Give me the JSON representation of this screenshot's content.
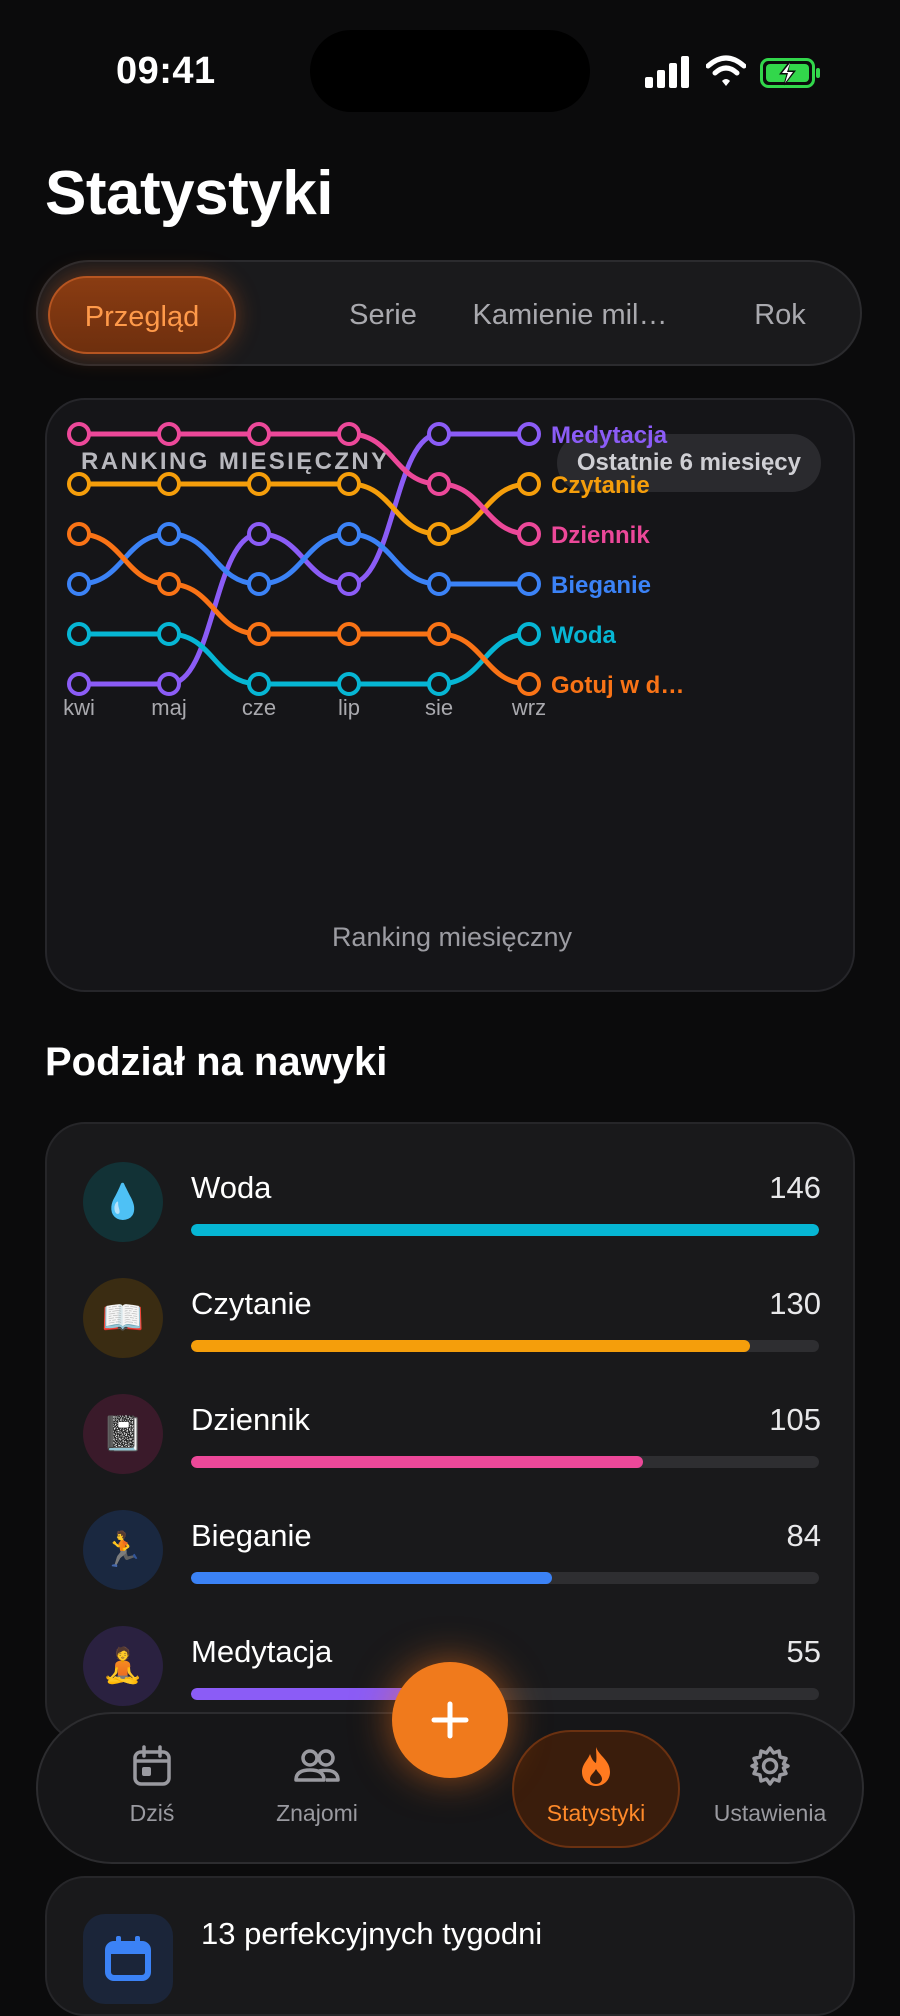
{
  "status_bar": {
    "time": "09:41"
  },
  "page_title": "Statystyki",
  "tabs": [
    {
      "label": "Przegląd",
      "active": true
    },
    {
      "label": "Serie",
      "active": false
    },
    {
      "label": "Kamienie mil…",
      "active": false
    },
    {
      "label": "Rok",
      "active": false
    }
  ],
  "ranking": {
    "title": "RANKING MIESIĘCZNY",
    "range_pill": "Ostatnie 6 miesięcy",
    "caption": "Ranking miesięczny"
  },
  "chart_data": {
    "type": "line",
    "categories": [
      "kwi",
      "maj",
      "cze",
      "lip",
      "sie",
      "wrz"
    ],
    "y_meaning": "rank (1 = top)",
    "ylim": [
      1,
      6
    ],
    "y_inverted": true,
    "series": [
      {
        "name": "Medytacja",
        "color": "#8b5cf6",
        "values": [
          6,
          6,
          3,
          4,
          1,
          1
        ]
      },
      {
        "name": "Czytanie",
        "color": "#f59e0b",
        "values": [
          2,
          2,
          2,
          2,
          3,
          2
        ]
      },
      {
        "name": "Dziennik",
        "color": "#ec4899",
        "values": [
          1,
          1,
          1,
          1,
          2,
          3
        ]
      },
      {
        "name": "Bieganie",
        "color": "#3b82f6",
        "values": [
          4,
          3,
          4,
          3,
          4,
          4
        ]
      },
      {
        "name": "Woda",
        "color": "#06b6d4",
        "values": [
          5,
          5,
          6,
          6,
          6,
          5
        ]
      },
      {
        "name": "Gotuj w d…",
        "color": "#f97316",
        "values": [
          3,
          4,
          5,
          5,
          5,
          6
        ]
      }
    ]
  },
  "breakdown": {
    "title": "Podział na nawyki",
    "max": 146,
    "items": [
      {
        "name": "Woda",
        "count": 146,
        "icon": "droplet-icon",
        "emoji": "💧",
        "color": "#06b6d4",
        "icon_bg": "#123236"
      },
      {
        "name": "Czytanie",
        "count": 130,
        "icon": "book-icon",
        "emoji": "📖",
        "color": "#f59e0b",
        "icon_bg": "#3a2c12"
      },
      {
        "name": "Dziennik",
        "count": 105,
        "icon": "notebook-icon",
        "emoji": "📓",
        "color": "#ec4899",
        "icon_bg": "#3a1a2a"
      },
      {
        "name": "Bieganie",
        "count": 84,
        "icon": "runner-icon",
        "emoji": "🏃",
        "color": "#3b82f6",
        "icon_bg": "#1a2840"
      },
      {
        "name": "Medytacja",
        "count": 55,
        "icon": "meditation-icon",
        "emoji": "🧘",
        "color": "#8b5cf6",
        "icon_bg": "#2a2140"
      }
    ]
  },
  "nav": [
    {
      "label": "Dziś",
      "icon": "calendar-icon",
      "active": false
    },
    {
      "label": "Znajomi",
      "icon": "friends-icon",
      "active": false
    },
    {
      "label": "Statystyki",
      "icon": "flame-icon",
      "active": true
    },
    {
      "label": "Ustawienia",
      "icon": "gear-icon",
      "active": false
    }
  ],
  "perfect_weeks": {
    "text": "13 perfekcyjnych tygodni",
    "icon": "calendar-icon"
  }
}
